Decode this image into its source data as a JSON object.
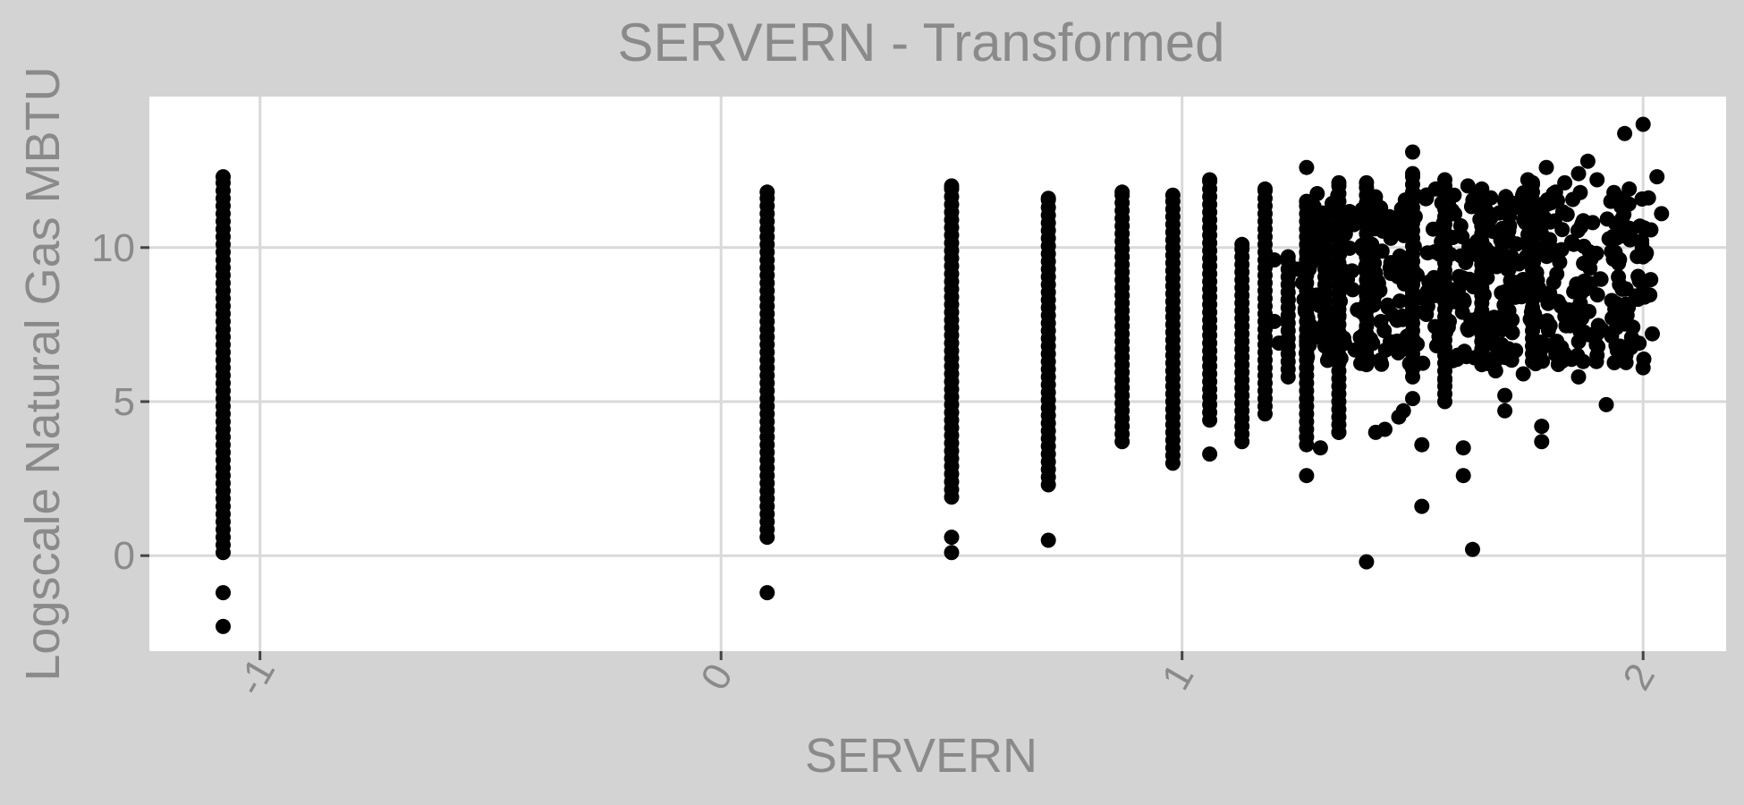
{
  "chart_data": {
    "type": "scatter",
    "title": "SERVERN - Transformed",
    "xlabel": "SERVERN",
    "ylabel": "Logscale Natural Gas MBTU",
    "xlim": [
      -1.24,
      2.18
    ],
    "ylim": [
      -3.1,
      14.9
    ],
    "x_ticks": [
      -1,
      0,
      1,
      2
    ],
    "x_tick_labels": [
      "-1",
      "0",
      "1",
      "2"
    ],
    "y_ticks": [
      0,
      5,
      10
    ],
    "y_tick_labels": [
      "0",
      "5",
      "10"
    ],
    "grid": true,
    "legend": "none",
    "colors": {
      "background": "#d3d3d3",
      "panel": "#ffffff",
      "grid": "#d9d9d9",
      "point": "#000000",
      "text": "#8a8a8a"
    },
    "columns": [
      {
        "x": -1.08,
        "y_min": 0.1,
        "y_max": 12.3
      },
      {
        "x": 0.1,
        "y_min": 0.6,
        "y_max": 11.8
      },
      {
        "x": 0.5,
        "y_min": 1.9,
        "y_max": 12.0
      },
      {
        "x": 0.71,
        "y_min": 2.3,
        "y_max": 11.6
      },
      {
        "x": 0.87,
        "y_min": 3.7,
        "y_max": 11.8
      },
      {
        "x": 0.98,
        "y_min": 3.0,
        "y_max": 11.7
      },
      {
        "x": 1.06,
        "y_min": 4.4,
        "y_max": 12.2
      },
      {
        "x": 1.13,
        "y_min": 3.7,
        "y_max": 10.1
      },
      {
        "x": 1.18,
        "y_min": 4.6,
        "y_max": 11.9
      },
      {
        "x": 1.23,
        "y_min": 5.8,
        "y_max": 9.7
      },
      {
        "x": 1.27,
        "y_min": 3.6,
        "y_max": 11.5
      },
      {
        "x": 1.31,
        "y_min": 6.8,
        "y_max": 11.0
      },
      {
        "x": 1.34,
        "y_min": 4.0,
        "y_max": 12.1
      },
      {
        "x": 1.4,
        "y_min": 6.2,
        "y_max": 12.1
      },
      {
        "x": 1.5,
        "y_min": 5.8,
        "y_max": 12.4
      },
      {
        "x": 1.57,
        "y_min": 5.0,
        "y_max": 12.2
      },
      {
        "x": 1.65,
        "y_min": 6.2,
        "y_max": 11.9
      },
      {
        "x": 1.76,
        "y_min": 6.3,
        "y_max": 12.1
      }
    ],
    "points": [
      {
        "x": -1.08,
        "y": -1.2
      },
      {
        "x": -1.08,
        "y": -2.3
      },
      {
        "x": 0.1,
        "y": -1.2
      },
      {
        "x": 0.5,
        "y": 0.6
      },
      {
        "x": 0.5,
        "y": 0.1
      },
      {
        "x": 0.71,
        "y": 0.5
      },
      {
        "x": 1.06,
        "y": 3.3
      },
      {
        "x": 1.27,
        "y": 12.6
      },
      {
        "x": 1.27,
        "y": 2.6
      },
      {
        "x": 1.3,
        "y": 3.5
      },
      {
        "x": 1.34,
        "y": 4.0
      },
      {
        "x": 1.42,
        "y": 4.0
      },
      {
        "x": 1.4,
        "y": -0.2
      },
      {
        "x": 1.44,
        "y": 4.1
      },
      {
        "x": 1.48,
        "y": 4.7
      },
      {
        "x": 1.47,
        "y": 4.5
      },
      {
        "x": 1.5,
        "y": 5.1
      },
      {
        "x": 1.5,
        "y": 13.1
      },
      {
        "x": 1.52,
        "y": 3.6
      },
      {
        "x": 1.52,
        "y": 1.6
      },
      {
        "x": 1.57,
        "y": 5.7
      },
      {
        "x": 1.61,
        "y": 3.5
      },
      {
        "x": 1.61,
        "y": 2.6
      },
      {
        "x": 1.63,
        "y": 0.2
      },
      {
        "x": 1.7,
        "y": 4.7
      },
      {
        "x": 1.7,
        "y": 5.2
      },
      {
        "x": 1.68,
        "y": 6.0
      },
      {
        "x": 1.74,
        "y": 5.9
      },
      {
        "x": 1.78,
        "y": 4.2
      },
      {
        "x": 1.78,
        "y": 3.7
      },
      {
        "x": 1.82,
        "y": 6.6
      },
      {
        "x": 1.86,
        "y": 5.8
      },
      {
        "x": 1.87,
        "y": 6.3
      },
      {
        "x": 1.9,
        "y": 6.5
      },
      {
        "x": 1.92,
        "y": 4.9
      },
      {
        "x": 1.95,
        "y": 6.8
      },
      {
        "x": 1.96,
        "y": 6.4
      },
      {
        "x": 2.0,
        "y": 6.1
      },
      {
        "x": 2.02,
        "y": 7.2
      },
      {
        "x": 2.0,
        "y": 9.7
      },
      {
        "x": 1.96,
        "y": 13.7
      },
      {
        "x": 2.0,
        "y": 14.0
      },
      {
        "x": 2.03,
        "y": 12.3
      },
      {
        "x": 2.04,
        "y": 11.1
      },
      {
        "x": 1.97,
        "y": 11.9
      },
      {
        "x": 1.93,
        "y": 11.5
      },
      {
        "x": 1.9,
        "y": 12.2
      },
      {
        "x": 1.88,
        "y": 12.8
      },
      {
        "x": 1.86,
        "y": 12.4
      },
      {
        "x": 1.83,
        "y": 12.1
      },
      {
        "x": 1.81,
        "y": 11.8
      },
      {
        "x": 1.79,
        "y": 12.6
      },
      {
        "x": 1.75,
        "y": 12.2
      },
      {
        "x": 1.73,
        "y": 11.3
      },
      {
        "x": 1.7,
        "y": 11.5
      },
      {
        "x": 1.66,
        "y": 11.6
      },
      {
        "x": 1.62,
        "y": 12.0
      },
      {
        "x": 1.59,
        "y": 11.7
      },
      {
        "x": 1.55,
        "y": 11.9
      },
      {
        "x": 1.53,
        "y": 11.6
      },
      {
        "x": 1.45,
        "y": 11.0
      },
      {
        "x": 1.43,
        "y": 10.6
      },
      {
        "x": 1.38,
        "y": 10.9
      },
      {
        "x": 1.36,
        "y": 10.7
      },
      {
        "x": 1.3,
        "y": 11.0
      },
      {
        "x": 1.29,
        "y": 10.2
      },
      {
        "x": 1.25,
        "y": 9.3
      },
      {
        "x": 1.23,
        "y": 8.3
      },
      {
        "x": 1.21,
        "y": 6.9
      },
      {
        "x": 1.2,
        "y": 7.6
      },
      {
        "x": 1.2,
        "y": 9.6
      }
    ],
    "cluster": {
      "x_range": [
        1.26,
        2.02
      ],
      "y_range": [
        6.2,
        11.8
      ],
      "count": 520
    }
  }
}
